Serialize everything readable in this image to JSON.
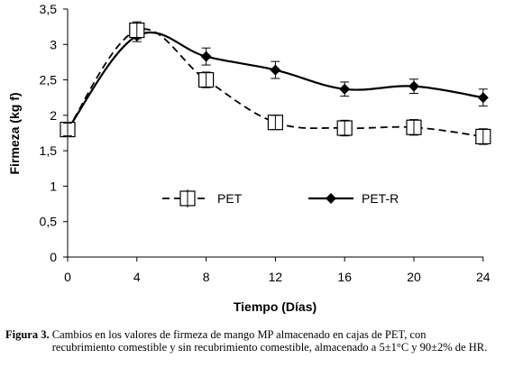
{
  "chart_data": {
    "type": "line",
    "xlabel": "Tiempo (Días)",
    "ylabel": "Firmeza (kg f)",
    "x": [
      0,
      4,
      8,
      12,
      16,
      20,
      24
    ],
    "x_ticks": [
      "0",
      "4",
      "8",
      "12",
      "16",
      "20",
      "24"
    ],
    "y_ticks": [
      "0",
      "0,5",
      "1",
      "1,5",
      "2",
      "2,5",
      "3",
      "3,5"
    ],
    "ylim": [
      0,
      3.5
    ],
    "grid": false,
    "legend_position": "inside-center",
    "series": [
      {
        "name": "PET",
        "line_style": "dashed",
        "marker": "open-square",
        "color": "#000000",
        "values": [
          1.8,
          3.2,
          2.5,
          1.9,
          1.82,
          1.83,
          1.7
        ],
        "errors": [
          0.02,
          0.05,
          0.04,
          0.03,
          0.04,
          0.04,
          0.04
        ]
      },
      {
        "name": "PET-R",
        "line_style": "solid",
        "marker": "diamond",
        "color": "#000000",
        "values": [
          1.8,
          3.12,
          2.83,
          2.64,
          2.37,
          2.41,
          2.25
        ],
        "errors": [
          0.02,
          0.08,
          0.12,
          0.12,
          0.1,
          0.1,
          0.12
        ]
      }
    ]
  },
  "caption": {
    "label": "Figura 3.",
    "text": "Cambios en los valores de firmeza de mango MP almacenado en cajas de PET, con recubrimiento comestible y sin recubrimiento comestible, almacenado a 5±1°C y 90±2% de HR."
  }
}
